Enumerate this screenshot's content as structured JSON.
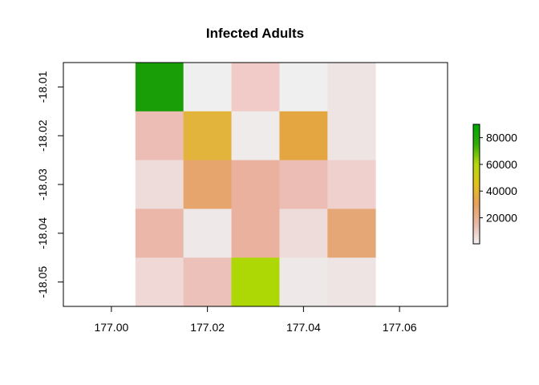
{
  "chart_data": {
    "type": "heatmap",
    "title": "Infected Adults",
    "xlabel": "",
    "ylabel": "",
    "x_ticks": [
      177.0,
      177.02,
      177.04,
      177.06
    ],
    "x_tick_labels": [
      "177.00",
      "177.02",
      "177.04",
      "177.06"
    ],
    "y_ticks": [
      -18.01,
      -18.02,
      -18.03,
      -18.04,
      -18.05
    ],
    "y_tick_labels": [
      "-18.01",
      "-18.02",
      "-18.03",
      "-18.04",
      "-18.05"
    ],
    "xlim": [
      176.99,
      177.07
    ],
    "ylim": [
      -18.055,
      -18.005
    ],
    "cell_size": 0.01,
    "cell_x_centers": [
      177.01,
      177.02,
      177.03,
      177.04,
      177.05
    ],
    "cell_y_centers": [
      -18.01,
      -18.02,
      -18.03,
      -18.04,
      -18.05
    ],
    "values": [
      [
        88000,
        500,
        6000,
        500,
        3000
      ],
      [
        8000,
        32000,
        1500,
        29000,
        2500
      ],
      [
        3500,
        21000,
        11000,
        9000,
        5500
      ],
      [
        11000,
        1500,
        11000,
        4000,
        20000
      ],
      [
        4000,
        8000,
        66000,
        1000,
        1500
      ]
    ],
    "colors": [
      [
        "#1a9e08",
        "#efefef",
        "#f0cbc7",
        "#efefef",
        "#eee4e3"
      ],
      [
        "#ecbdb5",
        "#e2b43b",
        "#eeebea",
        "#e4a640",
        "#eee4e3"
      ],
      [
        "#eedcda",
        "#e6a56c",
        "#ebb19f",
        "#ecbdb5",
        "#efd0cd"
      ],
      [
        "#ebb7a8",
        "#eee8e8",
        "#ebb19f",
        "#eedcda",
        "#e6a776"
      ],
      [
        "#efd8d6",
        "#ecc1b9",
        "#add806",
        "#eee8e8",
        "#eee4e3"
      ]
    ],
    "legend": {
      "placement": "right",
      "ticks": [
        20000,
        40000,
        60000,
        80000
      ],
      "tick_labels": [
        "20000",
        "40000",
        "60000",
        "80000"
      ],
      "range": [
        500,
        90000
      ],
      "gradient_stops": [
        "#f2f2f2",
        "#e8b8a8",
        "#e6a05c",
        "#e2c21a",
        "#b6d80a",
        "#2fad08",
        "#00a600"
      ]
    }
  }
}
